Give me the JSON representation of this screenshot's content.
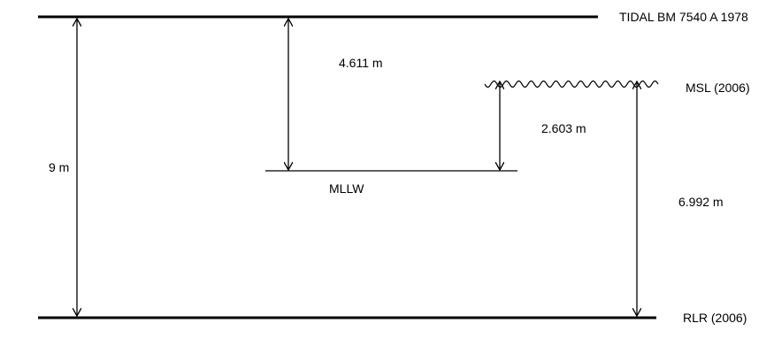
{
  "datums": {
    "tidal_bm": "TIDAL BM 7540 A 1978",
    "msl": "MSL (2006)",
    "mllw": "MLLW",
    "rlr": "RLR (2006)"
  },
  "measurements": {
    "bm_to_rlr": "9 m",
    "bm_to_mllw": "4.611 m",
    "msl_to_mllw": "2.603 m",
    "msl_to_rlr": "6.992 m"
  },
  "colors": {
    "line": "#000000",
    "background": "#ffffff"
  }
}
